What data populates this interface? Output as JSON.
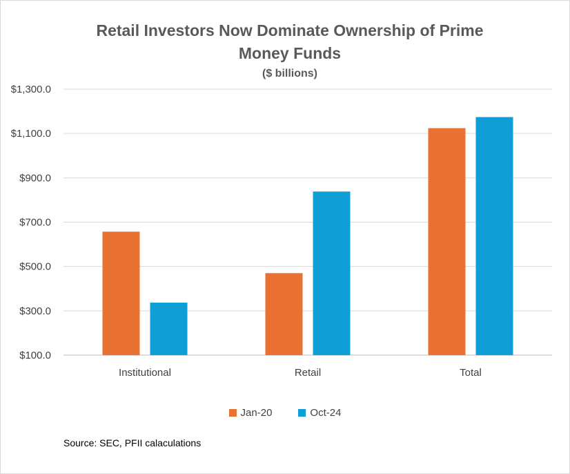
{
  "chart_data": {
    "type": "bar",
    "title_lines": [
      "Retail Investors Now Dominate Ownership of  Prime",
      "Money Funds"
    ],
    "subtitle": "($ billions)",
    "categories": [
      "Institutional",
      "Retail",
      "Total"
    ],
    "series": [
      {
        "name": "Jan-20",
        "color": "#e97132",
        "values": [
          657,
          470,
          1124
        ]
      },
      {
        "name": "Oct-24",
        "color": "#0f9ed5",
        "values": [
          337,
          838,
          1174
        ]
      }
    ],
    "ylim": [
      100,
      1300
    ],
    "yticks": [
      100,
      300,
      500,
      700,
      900,
      1100,
      1300
    ],
    "ytick_labels": [
      "$100.0",
      "$300.0",
      "$500.0",
      "$700.0",
      "$900.0",
      "$1,100.0",
      "$1,300.0"
    ],
    "grid": true,
    "legend_position": "bottom",
    "source": "Source: SEC, PFII calaculations"
  }
}
